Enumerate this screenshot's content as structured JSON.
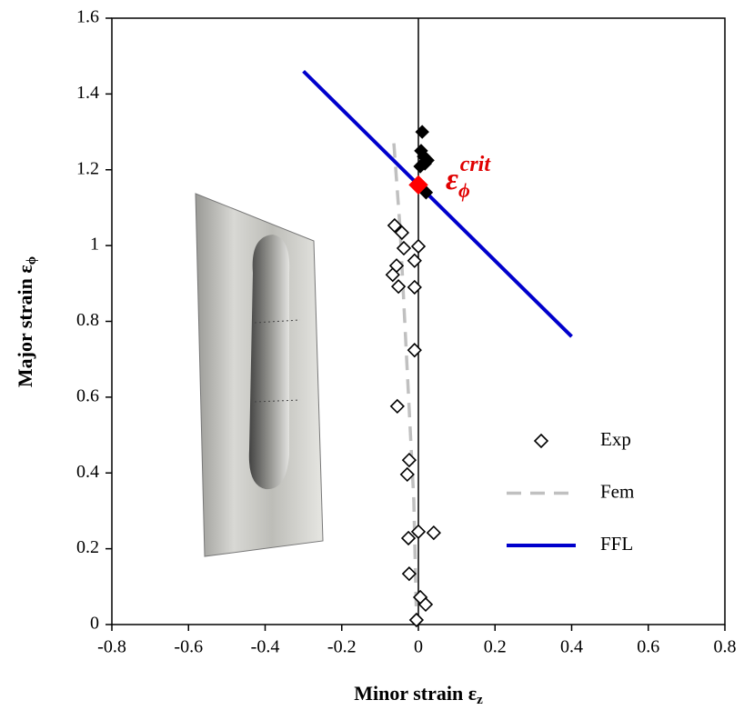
{
  "chart_data": {
    "type": "scatter",
    "xlabel": {
      "text": "Minor strain ε",
      "sub": "z"
    },
    "ylabel": {
      "text": "Major strain ε",
      "sub": "ϕ"
    },
    "annotation": {
      "text": "ε",
      "sub": "ϕ",
      "sup": "crit",
      "color": "#e00000"
    },
    "xlim": [
      -0.8,
      0.8
    ],
    "ylim": [
      0,
      1.6
    ],
    "xticks": [
      -0.8,
      -0.6,
      -0.4,
      -0.2,
      0,
      0.2,
      0.4,
      0.6,
      0.8
    ],
    "yticks": [
      0,
      0.2,
      0.4,
      0.6,
      0.8,
      1,
      1.2,
      1.4,
      1.6
    ],
    "legend": "lower right",
    "series": [
      {
        "name": "Exp",
        "marker": "diamond-open",
        "color": "#000000",
        "x": [
          -0.062,
          -0.043,
          -0.038,
          0.0,
          -0.01,
          -0.057,
          -0.067,
          -0.052,
          -0.01,
          -0.01,
          -0.055,
          -0.024,
          -0.029,
          0.0,
          0.04,
          -0.026,
          -0.024,
          0.005,
          0.019,
          -0.005
        ],
        "values": [
          1.053,
          1.034,
          0.993,
          0.998,
          0.96,
          0.947,
          0.923,
          0.892,
          0.89,
          0.724,
          0.576,
          0.434,
          0.396,
          0.245,
          0.242,
          0.228,
          0.134,
          0.072,
          0.053,
          0.012
        ]
      },
      {
        "name": "Fem",
        "marker": "dashed-line",
        "color": "#c0c0c0",
        "x": [
          -0.064,
          -0.048,
          -0.036,
          -0.024,
          -0.012,
          -0.005
        ],
        "values": [
          1.27,
          1.048,
          0.808,
          0.568,
          0.329,
          0.017
        ]
      },
      {
        "name": "FFL",
        "marker": "line",
        "color": "#0000cc",
        "x": [
          -0.3,
          0.4
        ],
        "values": [
          1.46,
          0.76
        ]
      },
      {
        "marker": "diamond-filled",
        "color": "#000000",
        "x": [
          0.01,
          0.007,
          0.014,
          0.024,
          0.017,
          0.005,
          0.02
        ],
        "values": [
          1.3,
          1.25,
          1.235,
          1.225,
          1.216,
          1.209,
          1.14
        ]
      },
      {
        "marker": "diamond-filled",
        "color": "#ff0000",
        "x": [
          0.0
        ],
        "values": [
          1.16
        ]
      }
    ]
  }
}
